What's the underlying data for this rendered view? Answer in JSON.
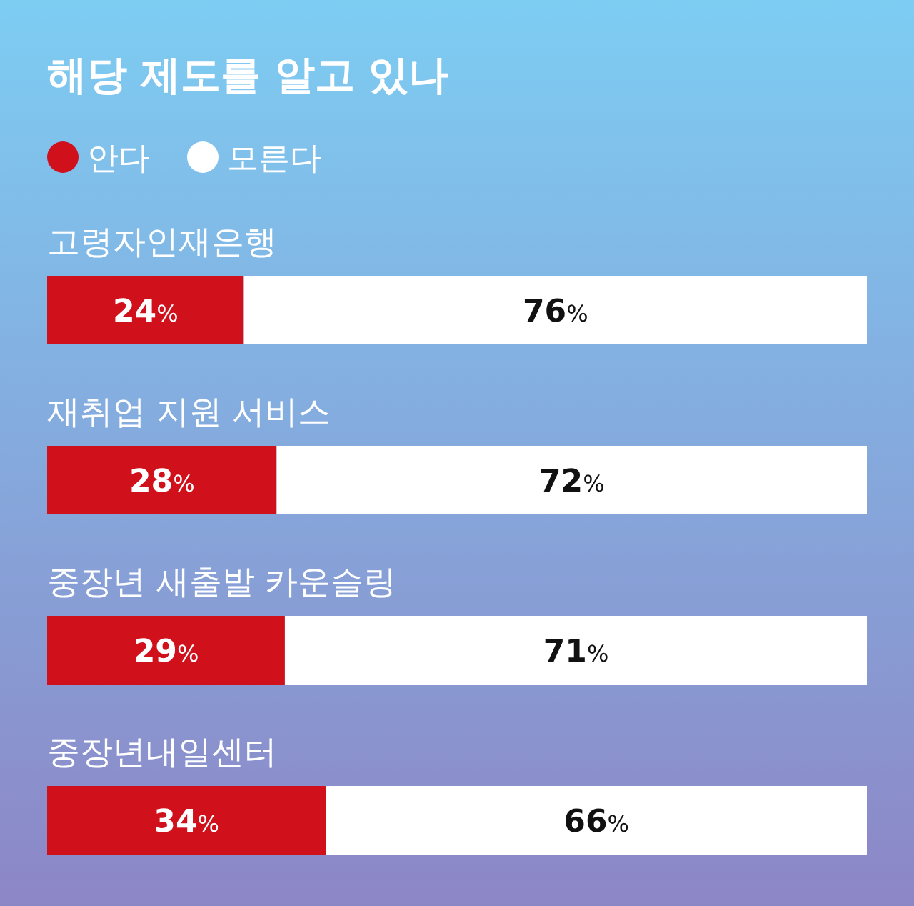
{
  "chart_data": {
    "type": "bar",
    "orientation": "horizontal",
    "stacked": true,
    "title": "해당 제도를 알고 있나",
    "categories": [
      "고령자인재은행",
      "재취업 지원 서비스",
      "중장년 새출발 카운슬링",
      "중장년내일센터"
    ],
    "series": [
      {
        "name": "안다",
        "color": "#d0111b",
        "values": [
          24,
          28,
          29,
          34
        ],
        "value_labels": [
          "24%",
          "28%",
          "29%",
          "34%"
        ]
      },
      {
        "name": "모른다",
        "color": "#ffffff",
        "values": [
          76,
          72,
          71,
          66
        ],
        "value_labels": [
          "76%",
          "72%",
          "71%",
          "66%"
        ]
      }
    ],
    "xlim": [
      0,
      100
    ],
    "legend": "top left"
  }
}
